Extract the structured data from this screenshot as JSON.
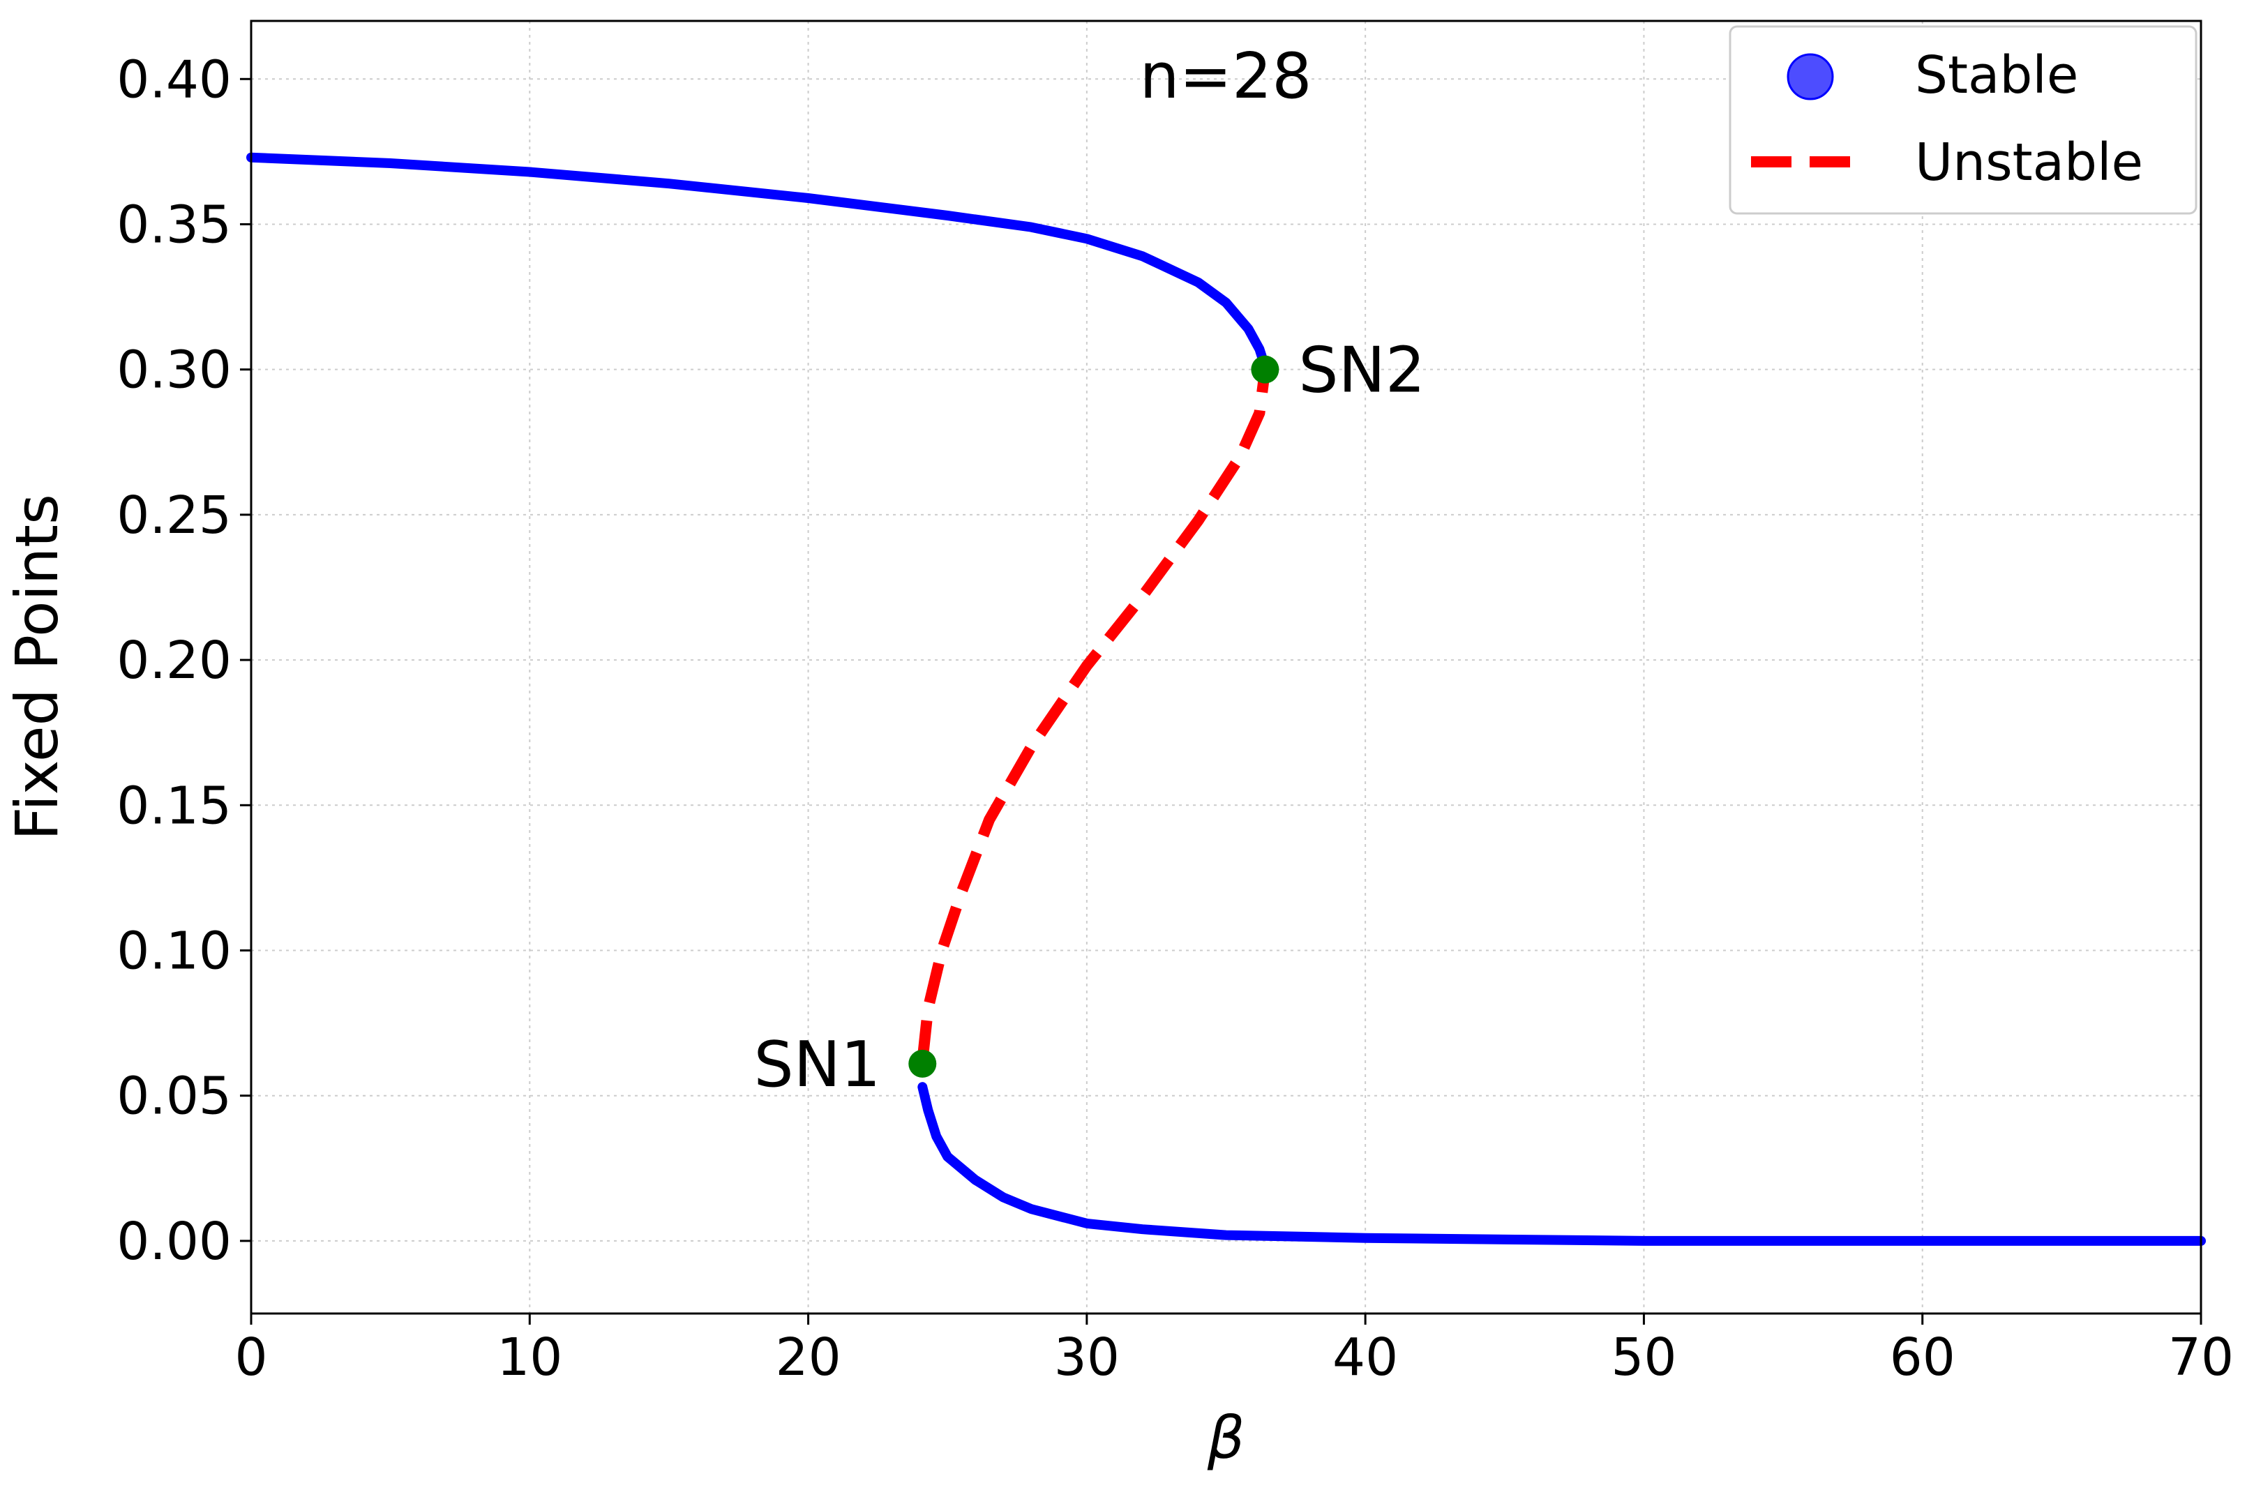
{
  "chart_data": {
    "type": "line",
    "title": "n=28",
    "xlabel": "β",
    "ylabel": "Fixed Points",
    "xlim": [
      0,
      70
    ],
    "ylim": [
      -0.025,
      0.42
    ],
    "x_ticks": [
      "0",
      "10",
      "20",
      "30",
      "40",
      "50",
      "60",
      "70"
    ],
    "y_ticks": [
      "0.00",
      "0.05",
      "0.10",
      "0.15",
      "0.20",
      "0.25",
      "0.30",
      "0.35",
      "0.40"
    ],
    "grid": true,
    "legend_position": "top-right",
    "colors": {
      "stable": "#0000ff",
      "unstable": "#ff0000",
      "bifurcation": "#008000",
      "legend_marker": "#4d4dff"
    },
    "series": [
      {
        "name": "Stable",
        "style": "points",
        "segments": [
          [
            [
              0,
              0.373
            ],
            [
              5,
              0.371
            ],
            [
              10,
              0.368
            ],
            [
              15,
              0.364
            ],
            [
              20,
              0.359
            ],
            [
              25,
              0.353
            ],
            [
              28,
              0.349
            ],
            [
              30,
              0.345
            ],
            [
              32,
              0.339
            ],
            [
              34,
              0.33
            ],
            [
              35,
              0.323
            ],
            [
              35.8,
              0.314
            ],
            [
              36.2,
              0.307
            ],
            [
              36.4,
              0.301
            ]
          ],
          [
            [
              24.1,
              0.053
            ],
            [
              24.3,
              0.045
            ],
            [
              24.6,
              0.036
            ],
            [
              25,
              0.029
            ],
            [
              26,
              0.021
            ],
            [
              27,
              0.015
            ],
            [
              28,
              0.011
            ],
            [
              30,
              0.006
            ],
            [
              32,
              0.004
            ],
            [
              35,
              0.002
            ],
            [
              40,
              0.001
            ],
            [
              50,
              0.0
            ],
            [
              60,
              0.0
            ],
            [
              70,
              0.0
            ]
          ]
        ]
      },
      {
        "name": "Unstable",
        "style": "dashed",
        "segments": [
          [
            [
              24.1,
              0.062
            ],
            [
              24.3,
              0.08
            ],
            [
              24.8,
              0.1
            ],
            [
              25.5,
              0.12
            ],
            [
              26.5,
              0.145
            ],
            [
              28,
              0.17
            ],
            [
              30,
              0.198
            ],
            [
              32,
              0.222
            ],
            [
              34,
              0.248
            ],
            [
              35.5,
              0.27
            ],
            [
              36.2,
              0.285
            ],
            [
              36.4,
              0.3
            ]
          ]
        ]
      }
    ],
    "bifurcation_points": [
      {
        "label": "SN1",
        "x": 24.1,
        "y": 0.061,
        "label_side": "left"
      },
      {
        "label": "SN2",
        "x": 36.4,
        "y": 0.3,
        "label_side": "right"
      }
    ]
  }
}
